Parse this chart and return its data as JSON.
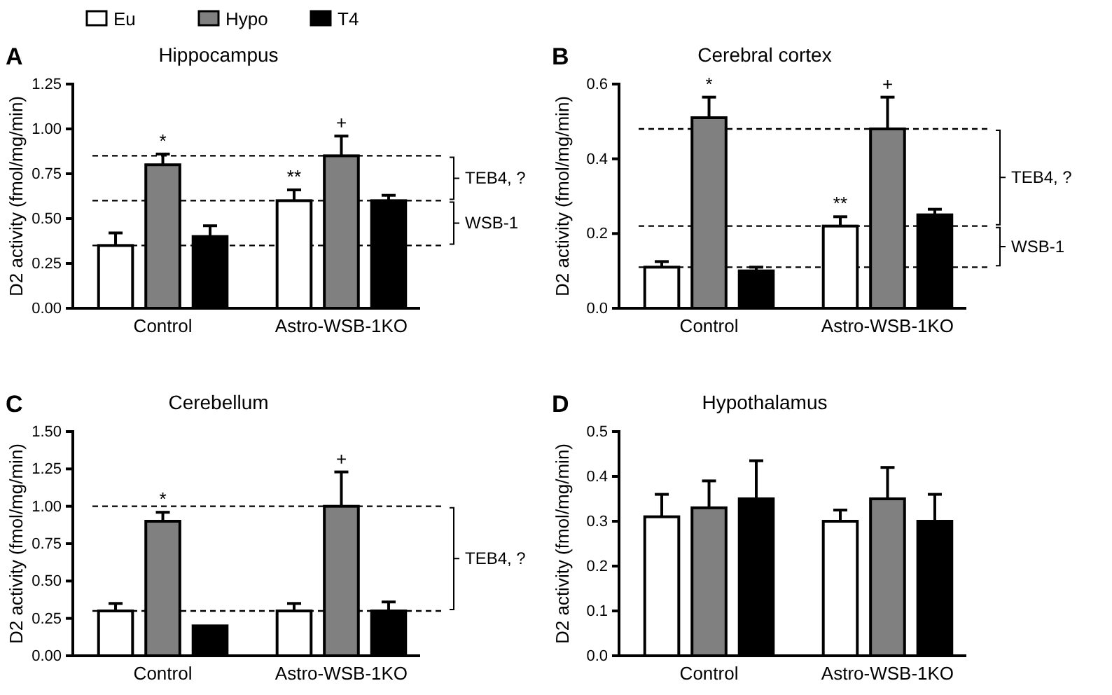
{
  "chart_data": [
    {
      "type": "bar",
      "title": "Hippocampus",
      "ylabel": "D2 activity (fmol/mg/min)",
      "categories": [
        "Control",
        "Astro-WSB-1KO"
      ],
      "legend": "top",
      "series": [
        {
          "name": "Eu",
          "color": "#ffffff",
          "values": [
            0.35,
            0.6
          ],
          "errors": [
            0.07,
            0.06
          ]
        },
        {
          "name": "Hypo",
          "color": "#808080",
          "values": [
            0.8,
            0.85
          ],
          "errors": [
            0.06,
            0.11
          ]
        },
        {
          "name": "T4",
          "color": "#000000",
          "values": [
            0.4,
            0.6
          ],
          "errors": [
            0.06,
            0.03
          ]
        }
      ],
      "ylim": [
        0,
        1.25
      ],
      "yticks": [
        {
          "value": 0,
          "label": "0.00"
        },
        {
          "value": 0.25,
          "label": "0.25"
        },
        {
          "value": 0.5,
          "label": "0.50"
        },
        {
          "value": 0.75,
          "label": "0.75"
        },
        {
          "value": 1,
          "label": "1.00"
        },
        {
          "value": 1.25,
          "label": "1.25"
        }
      ],
      "ref_lines": [
        {
          "axis": "y",
          "value": 0.35,
          "line_style": "dashed"
        },
        {
          "axis": "y",
          "value": 0.6,
          "line_style": "dashed"
        },
        {
          "axis": "y",
          "value": 0.85,
          "line_style": "dashed"
        }
      ],
      "annotations": [
        "A",
        "WSB-1",
        "TEB4, ?",
        {
          "text": "*",
          "x": "Control",
          "y": 0.8
        },
        {
          "text": "**",
          "x": "Astro-WSB-1KO",
          "y": 0.6
        },
        {
          "text": "+",
          "x": "Astro-WSB-1KO",
          "y": 0.85
        }
      ]
    },
    {
      "type": "bar",
      "title": "Cerebral cortex",
      "ylabel": "D2 activity (fmol/mg/min)",
      "categories": [
        "Control",
        "Astro-WSB-1KO"
      ],
      "series": [
        {
          "color": "#ffffff",
          "values": [
            0.11,
            0.22
          ],
          "errors": [
            0.015,
            0.025
          ]
        },
        {
          "color": "#808080",
          "values": [
            0.51,
            0.48
          ],
          "errors": [
            0.055,
            0.085
          ]
        },
        {
          "color": "#000000",
          "values": [
            0.1,
            0.25
          ],
          "errors": [
            0.01,
            0.015
          ]
        }
      ],
      "ylim": [
        0,
        0.6
      ],
      "yticks": [
        {
          "value": 0,
          "label": "0.0"
        },
        {
          "value": 0.2,
          "label": "0.2"
        },
        {
          "value": 0.4,
          "label": "0.4"
        },
        {
          "value": 0.6,
          "label": "0.6"
        }
      ],
      "ref_lines": [
        {
          "axis": "y",
          "value": 0.11,
          "line_style": "dashed"
        },
        {
          "axis": "y",
          "value": 0.22,
          "line_style": "dashed"
        },
        {
          "axis": "y",
          "value": 0.48,
          "line_style": "dashed"
        }
      ],
      "annotations": [
        "B",
        "WSB-1",
        "TEB4, ?",
        {
          "text": "*",
          "x": "Control",
          "y": 0.51
        },
        {
          "text": "**",
          "x": "Astro-WSB-1KO",
          "y": 0.22
        },
        {
          "text": "+",
          "x": "Astro-WSB-1KO",
          "y": 0.48
        }
      ]
    },
    {
      "type": "bar",
      "title": "Cerebellum",
      "ylabel": "D2 activity (fmol/mg/min)",
      "categories": [
        "Control",
        "Astro-WSB-1KO"
      ],
      "series": [
        {
          "color": "#ffffff",
          "values": [
            0.3,
            0.3
          ],
          "errors": [
            0.05,
            0.05
          ]
        },
        {
          "color": "#808080",
          "values": [
            0.9,
            1.0
          ],
          "errors": [
            0.06,
            0.23
          ]
        },
        {
          "color": "#000000",
          "values": [
            0.2,
            0.3
          ],
          "errors": [
            null,
            0.06
          ]
        }
      ],
      "ylim": [
        0,
        1.5
      ],
      "yticks": [
        {
          "value": 0,
          "label": "0.00"
        },
        {
          "value": 0.25,
          "label": "0.25"
        },
        {
          "value": 0.5,
          "label": "0.50"
        },
        {
          "value": 0.75,
          "label": "0.75"
        },
        {
          "value": 1,
          "label": "1.00"
        },
        {
          "value": 1.25,
          "label": "1.25"
        },
        {
          "value": 1.5,
          "label": "1.50"
        }
      ],
      "ref_lines": [
        {
          "axis": "y",
          "value": 0.3,
          "line_style": "dashed"
        },
        {
          "axis": "y",
          "value": 1.0,
          "line_style": "dashed"
        }
      ],
      "annotations": [
        "C",
        "TEB4, ?",
        {
          "text": "*",
          "x": "Control",
          "y": 0.9
        },
        {
          "text": "+",
          "x": "Astro-WSB-1KO",
          "y": 1.0
        }
      ]
    },
    {
      "type": "bar",
      "title": "Hypothalamus",
      "ylabel": "D2 activity (fmol/mg/min)",
      "categories": [
        "Control",
        "Astro-WSB-1KO"
      ],
      "series": [
        {
          "color": "#ffffff",
          "values": [
            0.31,
            0.3
          ],
          "errors": [
            0.05,
            0.025
          ]
        },
        {
          "color": "#808080",
          "values": [
            0.33,
            0.35
          ],
          "errors": [
            0.06,
            0.07
          ]
        },
        {
          "color": "#000000",
          "values": [
            0.35,
            0.3
          ],
          "errors": [
            0.085,
            0.06
          ]
        }
      ],
      "ylim": [
        0,
        0.5
      ],
      "yticks": [
        {
          "value": 0,
          "label": "0.0"
        },
        {
          "value": 0.1,
          "label": "0.1"
        },
        {
          "value": 0.2,
          "label": "0.2"
        },
        {
          "value": 0.3,
          "label": "0.3"
        },
        {
          "value": 0.4,
          "label": "0.4"
        },
        {
          "value": 0.5,
          "label": "0.5"
        }
      ],
      "annotations": [
        "D"
      ]
    }
  ]
}
